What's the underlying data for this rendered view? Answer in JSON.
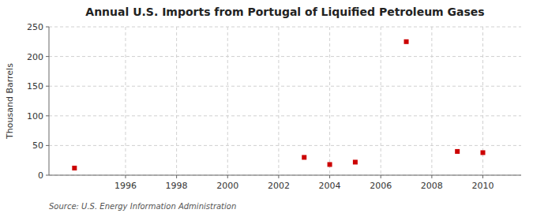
{
  "chart_data": {
    "type": "scatter",
    "title": "Annual U.S. Imports from Portugal of Liquified Petroleum Gases",
    "y_label": "Thousand Barrels",
    "source": "Source: U.S. Energy Information Administration",
    "x": [
      1994,
      2003,
      2004,
      2005,
      2007,
      2009,
      2010
    ],
    "values": [
      12,
      30,
      18,
      22,
      225,
      40,
      38
    ],
    "color": "#cc0000",
    "marker": "square",
    "xlim": [
      1993.0,
      2011.5
    ],
    "ylim": [
      0,
      250
    ],
    "xticks": [
      1996,
      1998,
      2000,
      2002,
      2004,
      2006,
      2008,
      2010
    ],
    "yticks": [
      0,
      50,
      100,
      150,
      200,
      250
    ],
    "grid": true
  }
}
